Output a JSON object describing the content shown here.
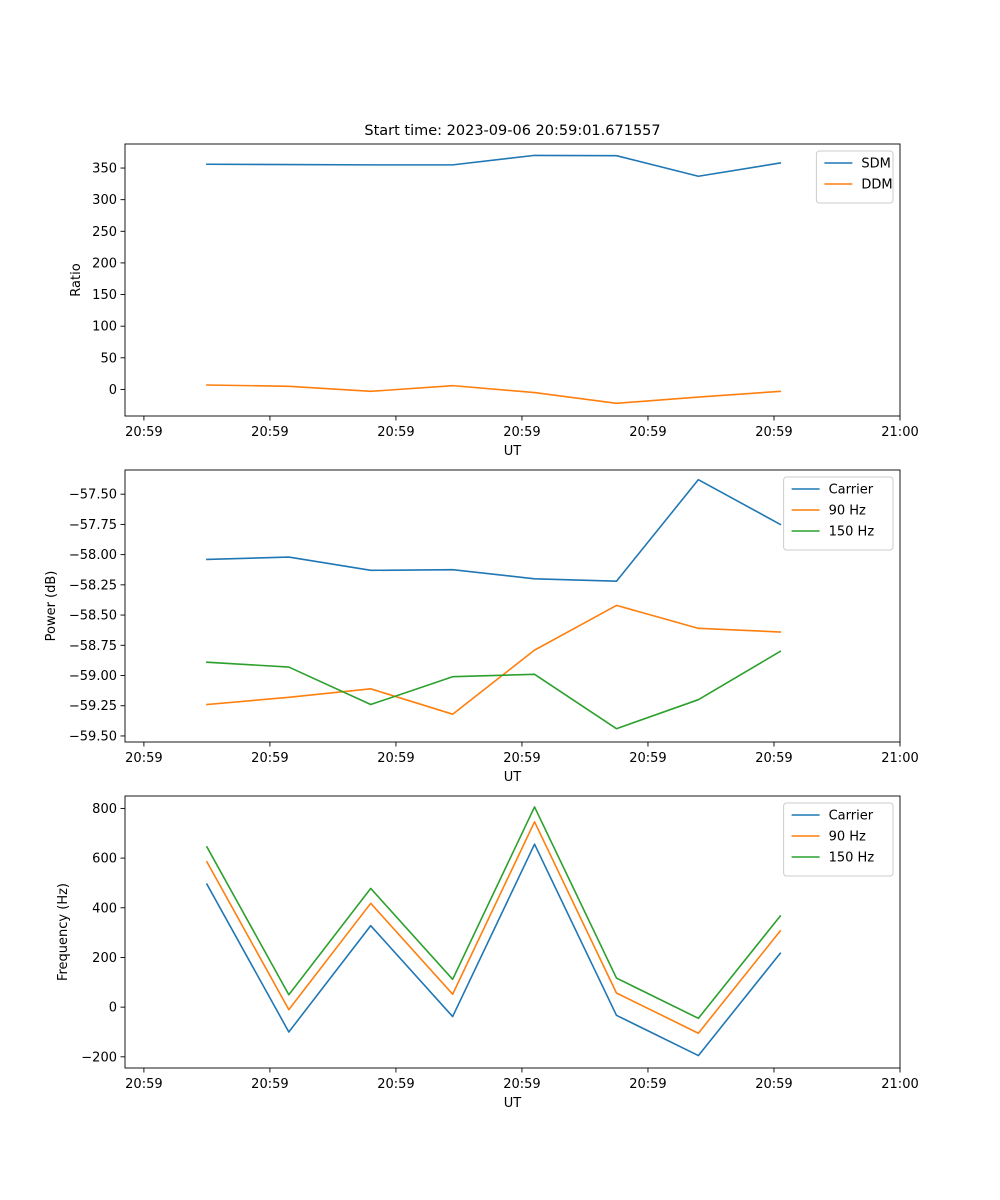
{
  "chart_data": [
    {
      "type": "line",
      "title": "Start time: 2023-09-06 20:59:01.671557",
      "xlabel": "UT",
      "ylabel": "Ratio",
      "x_tick_labels": [
        "20:59",
        "20:59",
        "20:59",
        "20:59",
        "20:59",
        "20:59",
        "21:00"
      ],
      "x_ticks": [
        0,
        1,
        2,
        3,
        4,
        5,
        6
      ],
      "xlim": [
        -0.15,
        6.0
      ],
      "ylim": [
        -42,
        388
      ],
      "yticks": [
        0,
        50,
        100,
        150,
        200,
        250,
        300,
        350
      ],
      "y_tick_labels": [
        "0",
        "50",
        "100",
        "150",
        "200",
        "250",
        "300",
        "350"
      ],
      "x": [
        0.5,
        1.15,
        1.8,
        2.45,
        3.1,
        3.75,
        4.4,
        5.05
      ],
      "legend_position": "top-right",
      "series": [
        {
          "name": "SDM",
          "color": "#1f77b4",
          "values": [
            356,
            355.5,
            355,
            355,
            370,
            369.5,
            337,
            358
          ]
        },
        {
          "name": "DDM",
          "color": "#ff7f0e",
          "values": [
            7,
            5,
            -3,
            6,
            -5,
            -22,
            -12,
            -3
          ]
        }
      ]
    },
    {
      "type": "line",
      "title": "",
      "xlabel": "UT",
      "ylabel": "Power (dB)",
      "x_tick_labels": [
        "20:59",
        "20:59",
        "20:59",
        "20:59",
        "20:59",
        "20:59",
        "21:00"
      ],
      "x_ticks": [
        0,
        1,
        2,
        3,
        4,
        5,
        6
      ],
      "xlim": [
        -0.15,
        6.0
      ],
      "ylim": [
        -59.55,
        -57.3
      ],
      "yticks": [
        -59.5,
        -59.25,
        -59.0,
        -58.75,
        -58.5,
        -58.25,
        -58.0,
        -57.75,
        -57.5
      ],
      "y_tick_labels": [
        "−59.50",
        "−59.25",
        "−59.00",
        "−58.75",
        "−58.50",
        "−58.25",
        "−58.00",
        "−57.75",
        "−57.50"
      ],
      "x": [
        0.5,
        1.15,
        1.8,
        2.45,
        3.1,
        3.75,
        4.4,
        5.05
      ],
      "legend_position": "top-right",
      "series": [
        {
          "name": "Carrier",
          "color": "#1f77b4",
          "values": [
            -58.04,
            -58.02,
            -58.13,
            -58.125,
            -58.2,
            -58.22,
            -57.38,
            -57.75
          ]
        },
        {
          "name": "90 Hz",
          "color": "#ff7f0e",
          "values": [
            -59.24,
            -59.18,
            -59.11,
            -59.32,
            -58.79,
            -58.42,
            -58.61,
            -58.64
          ]
        },
        {
          "name": "150 Hz",
          "color": "#2ca02c",
          "values": [
            -58.89,
            -58.93,
            -59.24,
            -59.01,
            -58.99,
            -59.44,
            -59.2,
            -58.8
          ]
        }
      ]
    },
    {
      "type": "line",
      "title": "",
      "xlabel": "UT",
      "ylabel": "Frequency (Hz)",
      "x_tick_labels": [
        "20:59",
        "20:59",
        "20:59",
        "20:59",
        "20:59",
        "20:59",
        "21:00"
      ],
      "x_ticks": [
        0,
        1,
        2,
        3,
        4,
        5,
        6
      ],
      "xlim": [
        -0.15,
        6.0
      ],
      "ylim": [
        -245,
        850
      ],
      "yticks": [
        -200,
        0,
        200,
        400,
        600,
        800
      ],
      "y_tick_labels": [
        "−200",
        "0",
        "200",
        "400",
        "600",
        "800"
      ],
      "x": [
        0.5,
        1.15,
        1.8,
        2.45,
        3.1,
        3.75,
        4.4,
        5.05
      ],
      "legend_position": "top-right",
      "series": [
        {
          "name": "Carrier",
          "color": "#1f77b4",
          "values": [
            495,
            -100,
            328,
            -38,
            656,
            -33,
            -195,
            217
          ]
        },
        {
          "name": "90 Hz",
          "color": "#ff7f0e",
          "values": [
            585,
            -10,
            418,
            52,
            746,
            57,
            -105,
            307
          ]
        },
        {
          "name": "150 Hz",
          "color": "#2ca02c",
          "values": [
            645,
            50,
            478,
            112,
            806,
            117,
            -45,
            367
          ]
        }
      ]
    }
  ]
}
